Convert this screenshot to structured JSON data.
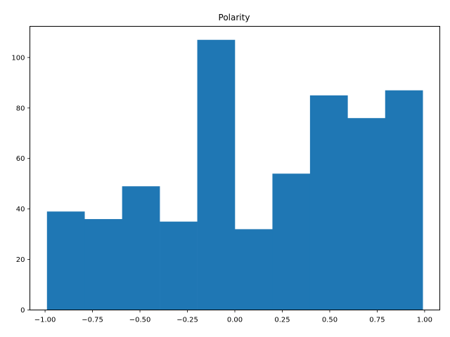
{
  "chart_data": {
    "type": "bar",
    "title": "Polarity",
    "xlabel": "",
    "ylabel": "",
    "bin_edges": [
      -0.99,
      -0.792,
      -0.594,
      -0.396,
      -0.198,
      0.0,
      0.198,
      0.396,
      0.594,
      0.792,
      0.99
    ],
    "values": [
      39,
      36,
      49,
      35,
      107,
      32,
      54,
      85,
      76,
      87
    ],
    "xlim": [
      -1.08,
      1.08
    ],
    "ylim": [
      0,
      112.35
    ],
    "xticks": [
      -1.0,
      -0.75,
      -0.5,
      -0.25,
      0.0,
      0.25,
      0.5,
      0.75,
      1.0
    ],
    "xtick_labels": [
      "−1.00",
      "−0.75",
      "−0.50",
      "−0.25",
      "0.00",
      "0.25",
      "0.50",
      "0.75",
      "1.00"
    ],
    "yticks": [
      0,
      20,
      40,
      60,
      80,
      100
    ],
    "ytick_labels": [
      "0",
      "20",
      "40",
      "60",
      "80",
      "100"
    ],
    "bar_color": "#1f77b4",
    "grid": false,
    "legend": "none"
  }
}
